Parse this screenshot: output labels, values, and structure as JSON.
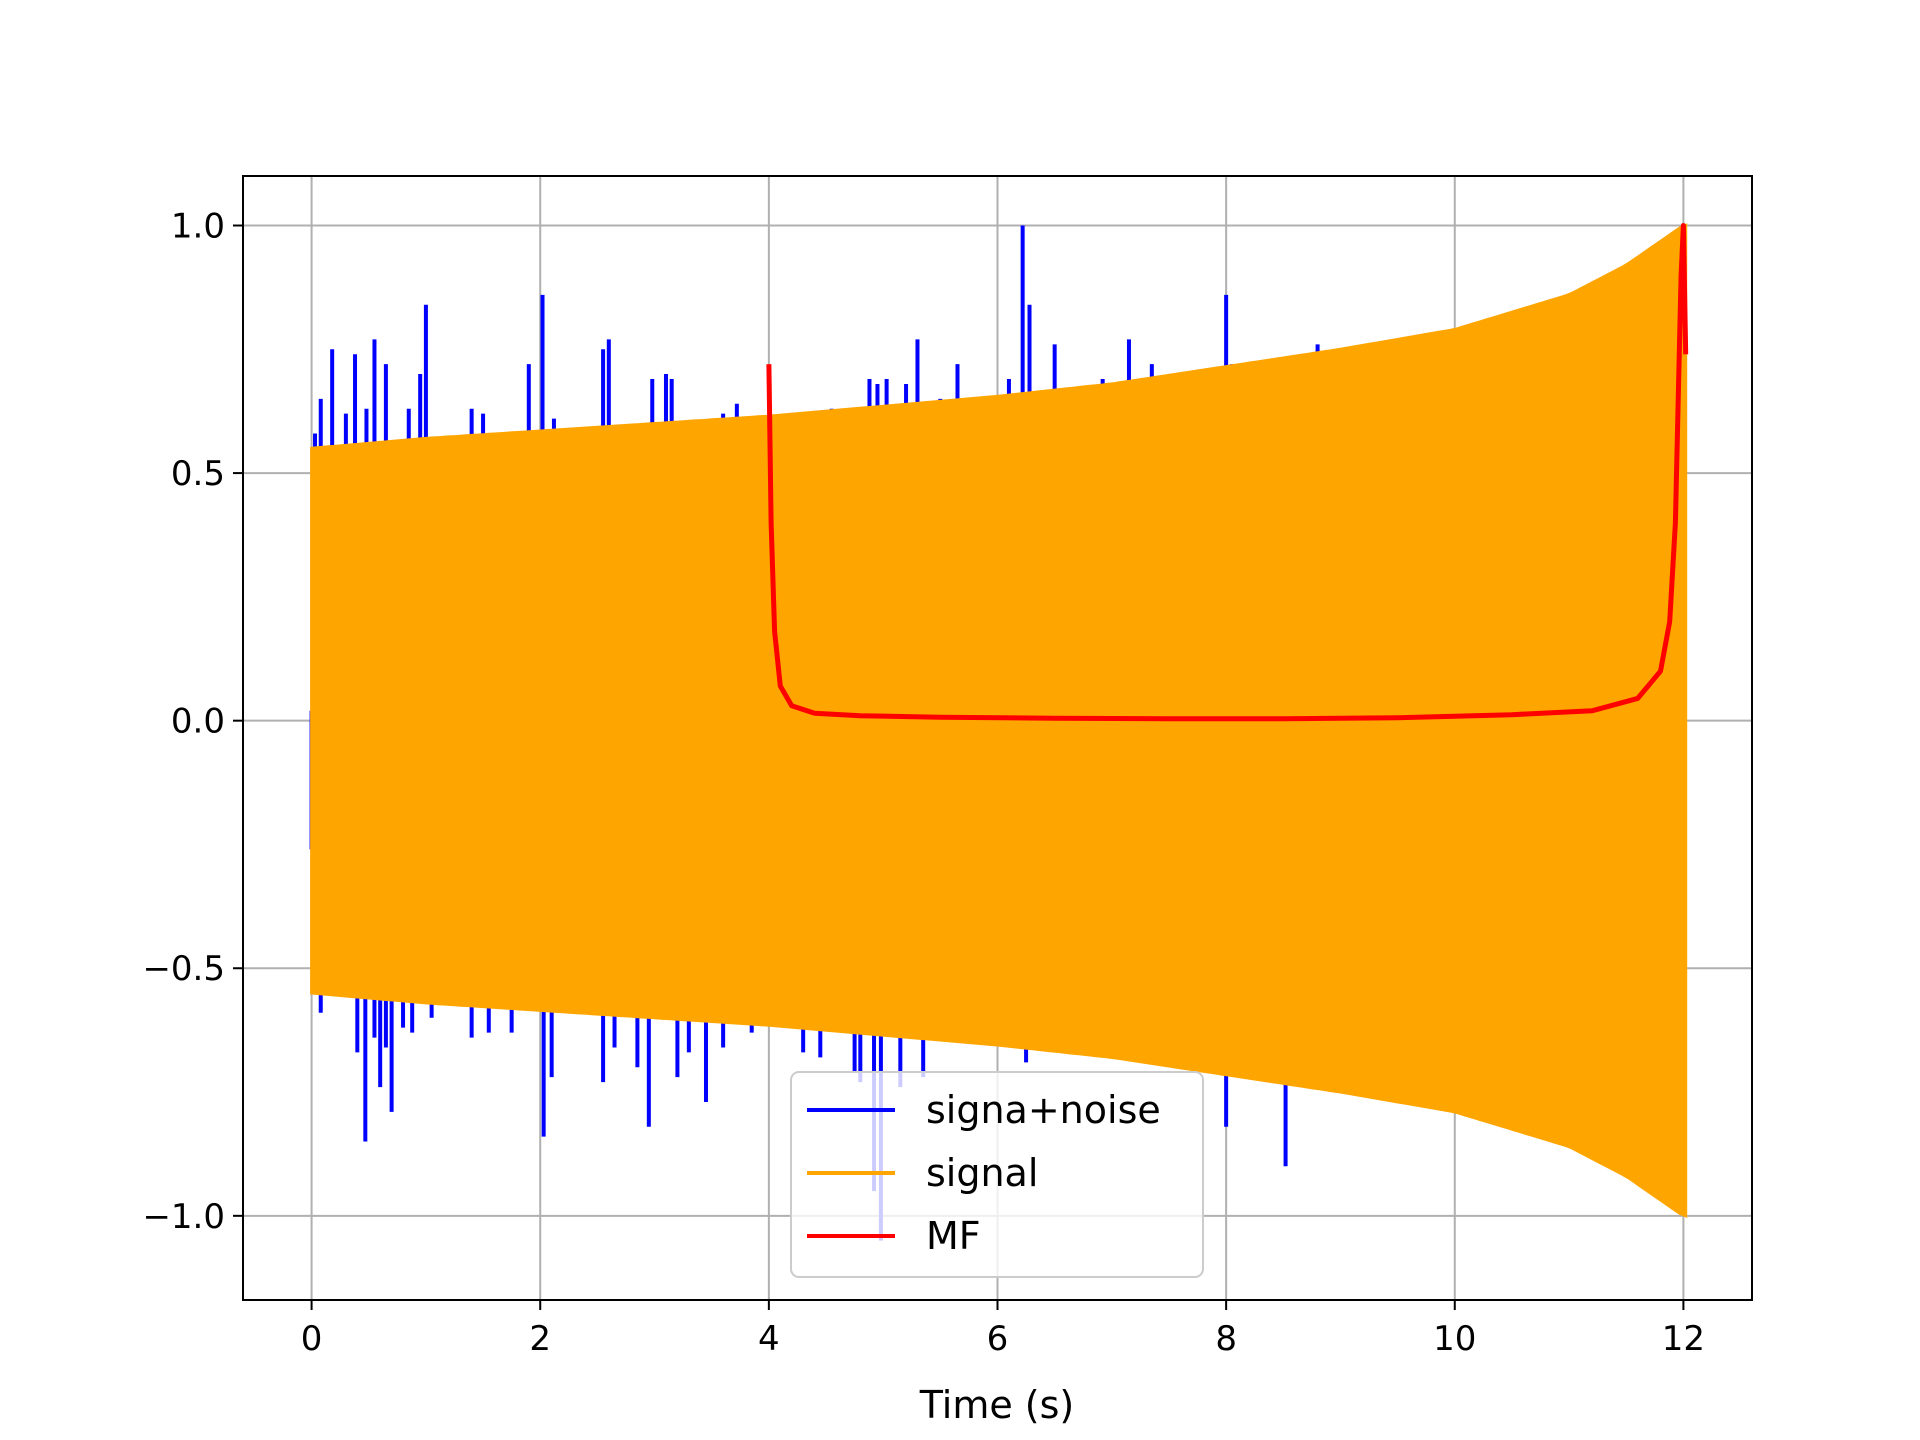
{
  "chart_data": {
    "type": "line",
    "title": "",
    "xlabel": "Time (s)",
    "ylabel": "",
    "xlim": [
      -0.6,
      12.6
    ],
    "ylim": [
      -1.17,
      1.1
    ],
    "xticks": [
      0,
      2,
      4,
      6,
      8,
      10,
      12
    ],
    "xtick_labels": [
      "0",
      "2",
      "4",
      "6",
      "8",
      "10",
      "12"
    ],
    "yticks": [
      1.0,
      0.5,
      0.0,
      -0.5,
      -1.0
    ],
    "ytick_labels": [
      "1.0",
      "0.5",
      "0.0",
      "−0.5",
      "−1.0"
    ],
    "grid": true,
    "legend_position": "lower center",
    "series": [
      {
        "name": "signa+noise",
        "color": "#0000ff",
        "kind": "spikes",
        "spikes": [
          [
            0.03,
            0.58
          ],
          [
            0.08,
            0.65
          ],
          [
            0.18,
            0.75
          ],
          [
            0.3,
            0.62
          ],
          [
            0.38,
            0.74
          ],
          [
            0.48,
            0.63
          ],
          [
            0.55,
            0.77
          ],
          [
            0.65,
            0.72
          ],
          [
            0.85,
            0.63
          ],
          [
            0.95,
            0.7
          ],
          [
            1.0,
            0.84
          ],
          [
            1.4,
            0.63
          ],
          [
            1.5,
            0.62
          ],
          [
            1.9,
            0.72
          ],
          [
            2.02,
            0.86
          ],
          [
            2.12,
            0.61
          ],
          [
            2.55,
            0.75
          ],
          [
            2.6,
            0.77
          ],
          [
            2.9,
            0.6
          ],
          [
            2.98,
            0.69
          ],
          [
            3.1,
            0.7
          ],
          [
            3.15,
            0.69
          ],
          [
            3.6,
            0.62
          ],
          [
            3.72,
            0.64
          ],
          [
            4.3,
            0.62
          ],
          [
            4.55,
            0.63
          ],
          [
            4.7,
            0.63
          ],
          [
            4.88,
            0.69
          ],
          [
            4.95,
            0.68
          ],
          [
            5.03,
            0.69
          ],
          [
            5.2,
            0.68
          ],
          [
            5.3,
            0.77
          ],
          [
            5.5,
            0.65
          ],
          [
            5.65,
            0.72
          ],
          [
            6.1,
            0.69
          ],
          [
            6.22,
            1.0
          ],
          [
            6.28,
            0.84
          ],
          [
            6.5,
            0.76
          ],
          [
            6.92,
            0.69
          ],
          [
            7.15,
            0.77
          ],
          [
            7.35,
            0.72
          ],
          [
            7.65,
            0.7
          ],
          [
            8.0,
            0.86
          ],
          [
            8.05,
            0.72
          ],
          [
            8.8,
            0.76
          ],
          [
            0.0,
            -0.26
          ],
          [
            0.0,
            0.02
          ],
          [
            0.08,
            -0.59
          ],
          [
            0.4,
            -0.67
          ],
          [
            0.47,
            -0.85
          ],
          [
            0.55,
            -0.64
          ],
          [
            0.6,
            -0.74
          ],
          [
            0.65,
            -0.66
          ],
          [
            0.7,
            -0.79
          ],
          [
            0.8,
            -0.62
          ],
          [
            0.88,
            -0.63
          ],
          [
            1.05,
            -0.6
          ],
          [
            1.4,
            -0.64
          ],
          [
            1.55,
            -0.63
          ],
          [
            1.75,
            -0.63
          ],
          [
            2.03,
            -0.84
          ],
          [
            2.1,
            -0.72
          ],
          [
            2.55,
            -0.73
          ],
          [
            2.65,
            -0.66
          ],
          [
            2.85,
            -0.7
          ],
          [
            2.95,
            -0.82
          ],
          [
            3.2,
            -0.72
          ],
          [
            3.3,
            -0.67
          ],
          [
            3.45,
            -0.77
          ],
          [
            3.6,
            -0.66
          ],
          [
            3.85,
            -0.63
          ],
          [
            4.3,
            -0.67
          ],
          [
            4.45,
            -0.68
          ],
          [
            4.75,
            -0.71
          ],
          [
            4.8,
            -0.73
          ],
          [
            4.92,
            -0.95
          ],
          [
            4.98,
            -1.05
          ],
          [
            5.15,
            -0.74
          ],
          [
            5.35,
            -0.72
          ],
          [
            6.25,
            -0.69
          ],
          [
            6.4,
            -0.65
          ],
          [
            7.1,
            -0.68
          ],
          [
            7.5,
            -0.69
          ],
          [
            8.0,
            -0.82
          ],
          [
            8.52,
            -0.9
          ]
        ]
      },
      {
        "name": "signal",
        "color": "#ffa500",
        "kind": "chirp-envelope",
        "start": 0,
        "end": 12.02,
        "envelope": [
          [
            0,
            0.55
          ],
          [
            1,
            0.57
          ],
          [
            2,
            0.585
          ],
          [
            3,
            0.6
          ],
          [
            4,
            0.615
          ],
          [
            5,
            0.635
          ],
          [
            6,
            0.655
          ],
          [
            7,
            0.68
          ],
          [
            8,
            0.715
          ],
          [
            9,
            0.75
          ],
          [
            10,
            0.79
          ],
          [
            11,
            0.86
          ],
          [
            11.5,
            0.92
          ],
          [
            12,
            1.0
          ]
        ]
      },
      {
        "name": "MF",
        "color": "#ff0000",
        "kind": "line",
        "points": [
          [
            4.0,
            0.72
          ],
          [
            4.02,
            0.4
          ],
          [
            4.05,
            0.18
          ],
          [
            4.1,
            0.07
          ],
          [
            4.2,
            0.03
          ],
          [
            4.4,
            0.015
          ],
          [
            4.8,
            0.01
          ],
          [
            5.5,
            0.007
          ],
          [
            6.5,
            0.005
          ],
          [
            7.5,
            0.004
          ],
          [
            8.5,
            0.004
          ],
          [
            9.5,
            0.006
          ],
          [
            10.5,
            0.012
          ],
          [
            11.2,
            0.02
          ],
          [
            11.6,
            0.045
          ],
          [
            11.8,
            0.1
          ],
          [
            11.88,
            0.2
          ],
          [
            11.93,
            0.4
          ],
          [
            11.96,
            0.7
          ],
          [
            11.98,
            0.9
          ],
          [
            12.0,
            1.0
          ],
          [
            12.02,
            0.74
          ]
        ]
      }
    ]
  }
}
